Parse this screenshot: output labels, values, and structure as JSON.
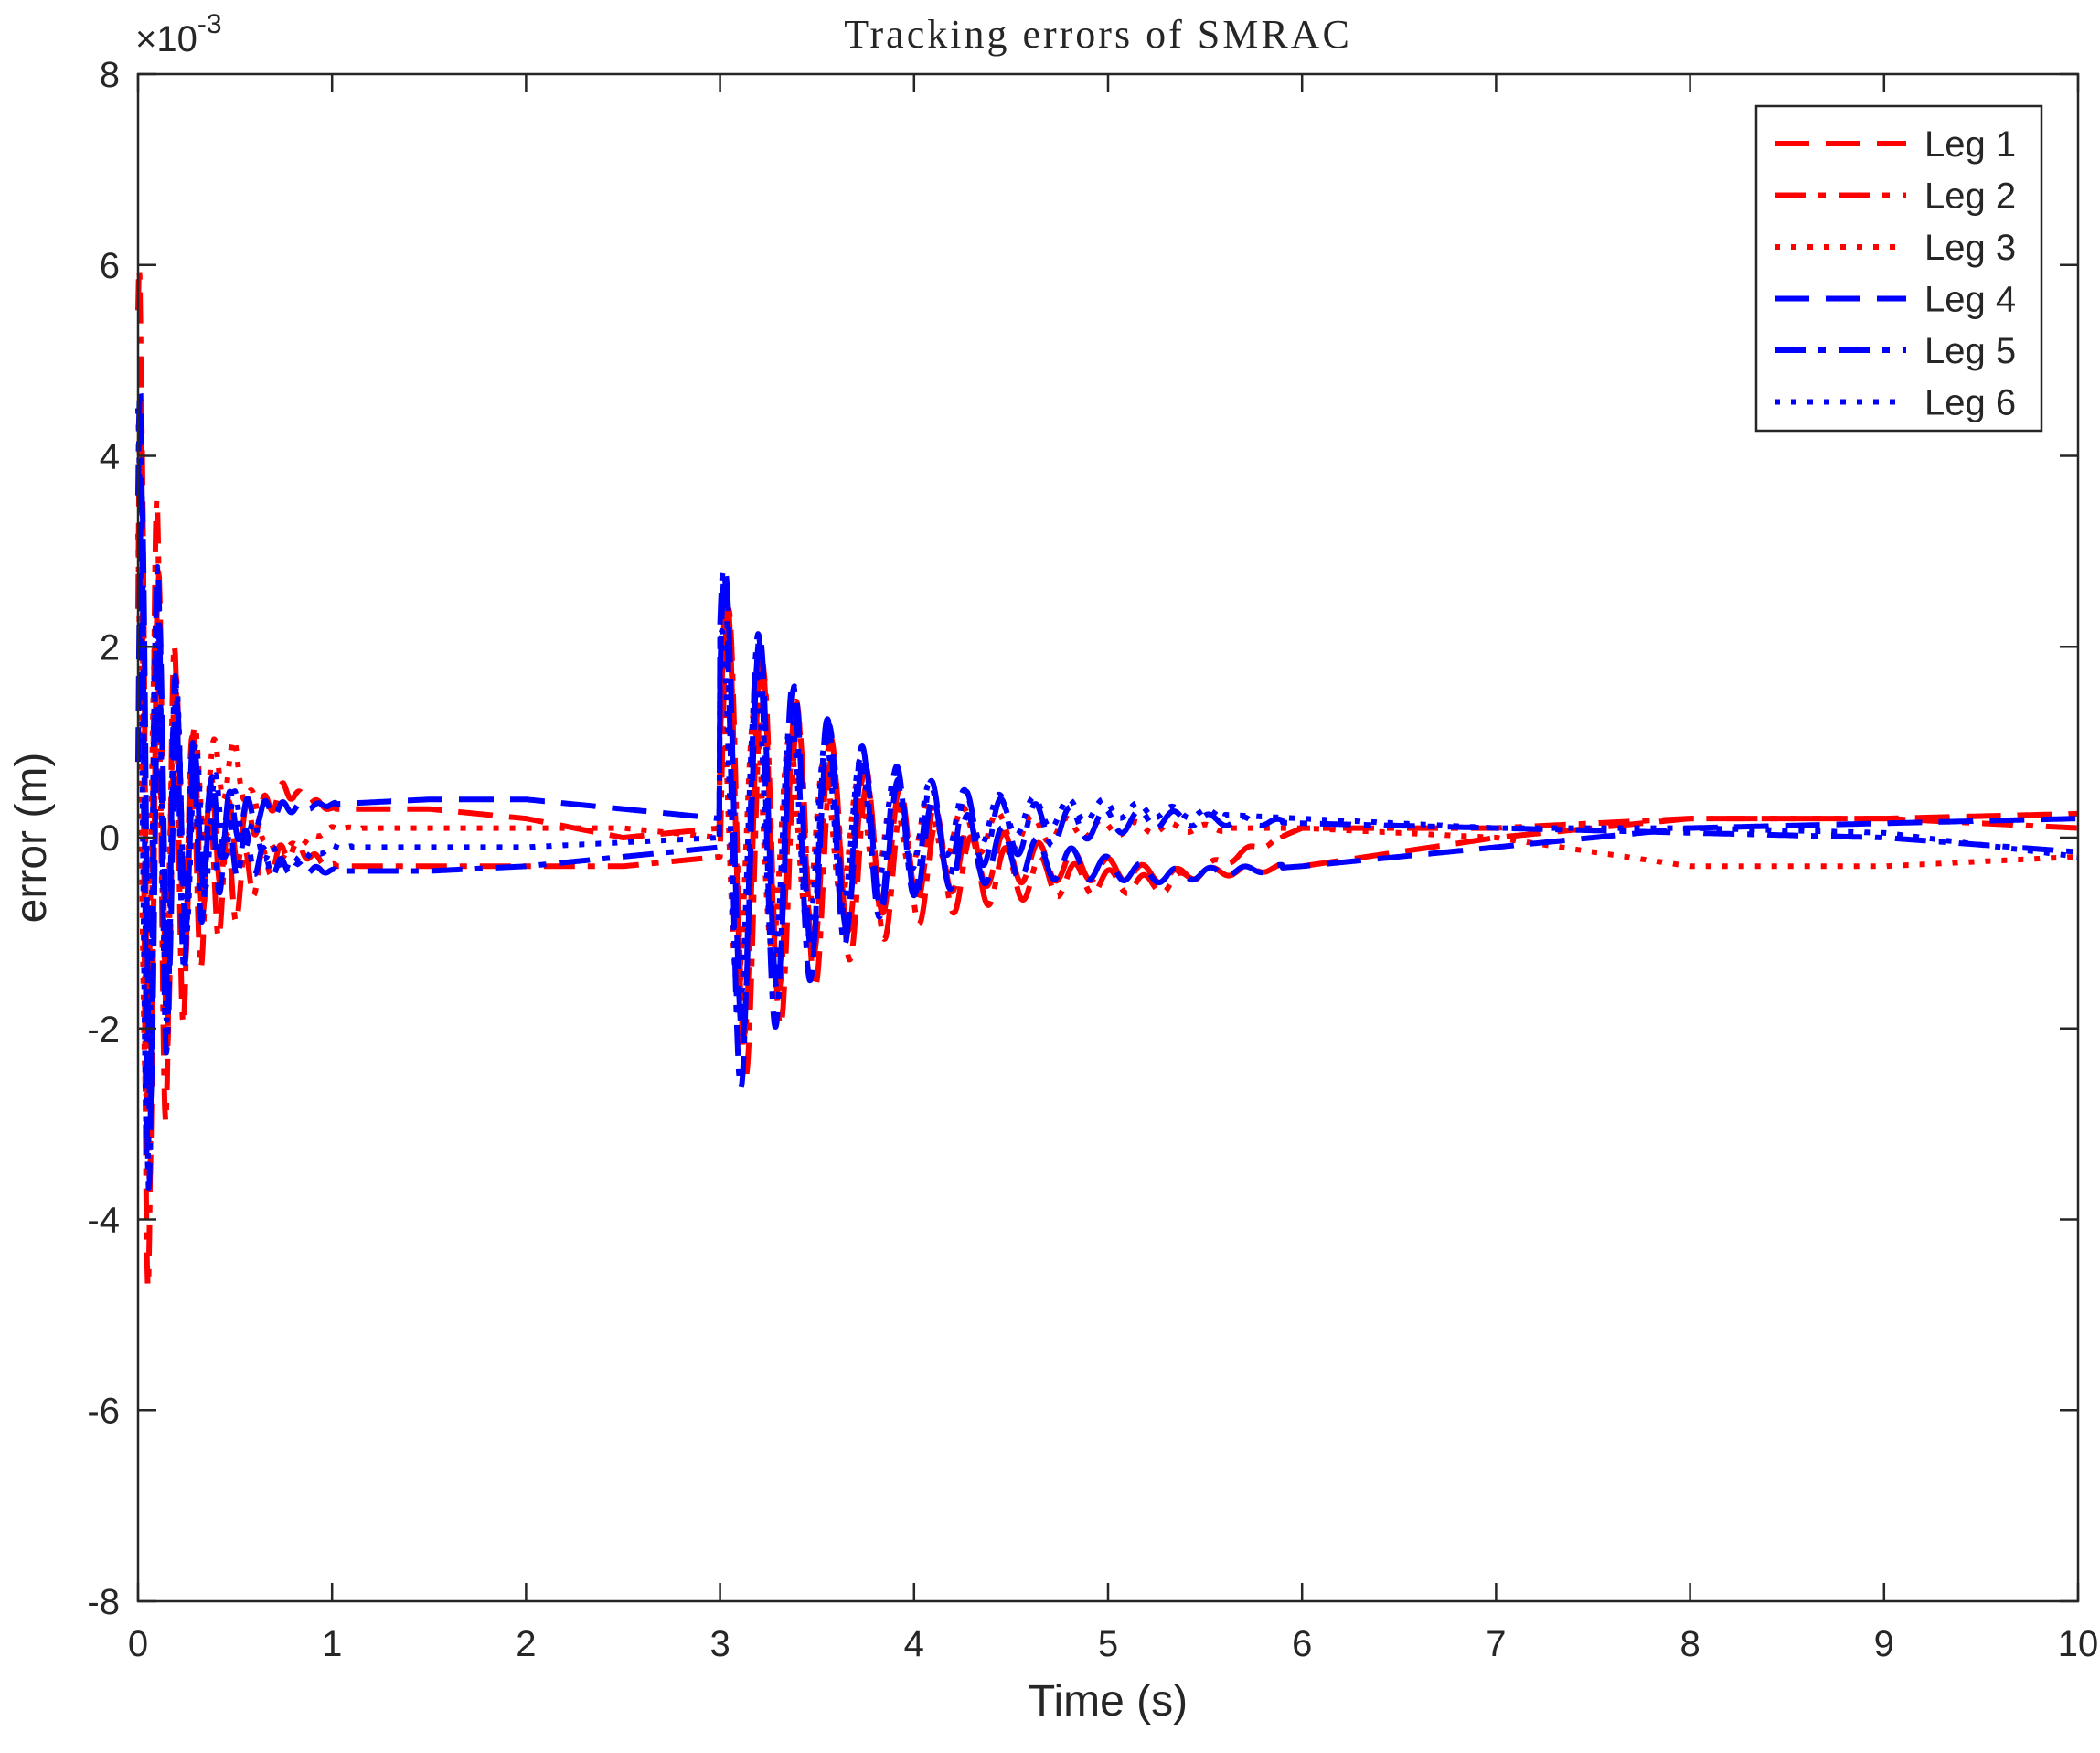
{
  "chart_data": {
    "type": "line",
    "title": "Tracking errors of SMRAC",
    "xlabel": "Time (s)",
    "ylabel": "error (m)",
    "y_exponent_label": "×10",
    "y_exponent_power": "-3",
    "xlim": [
      0,
      10
    ],
    "ylim": [
      -8,
      8
    ],
    "x_ticks": [
      0,
      1,
      2,
      3,
      4,
      5,
      6,
      7,
      8,
      9,
      10
    ],
    "y_ticks": [
      -8,
      -6,
      -4,
      -2,
      0,
      2,
      4,
      6,
      8
    ],
    "x_tick_labels": [
      "0",
      "1",
      "2",
      "3",
      "4",
      "5",
      "6",
      "7",
      "8",
      "9",
      "10"
    ],
    "y_tick_labels": [
      "-8",
      "-6",
      "-4",
      "-2",
      "0",
      "2",
      "4",
      "6",
      "8"
    ],
    "grid": false,
    "legend_position": "top-right",
    "colors": {
      "red": "#ff0000",
      "blue": "#0000ff",
      "axis": "#262626"
    },
    "series": [
      {
        "name": "Leg 1",
        "color": "#ff0000",
        "dash": "dashed",
        "envelope": [
          {
            "amp": 5.0,
            "t0": 0.0,
            "t1": 0.42,
            "freq": 11,
            "phase": 0.5
          },
          {
            "amp": 2.6,
            "t0": 3.0,
            "t1": 5.3,
            "freq": 5.6,
            "phase": 0.3
          }
        ],
        "baseline": [
          [
            0,
            0
          ],
          [
            0.5,
            0
          ],
          [
            0.75,
            0.5
          ],
          [
            1,
            0.3
          ],
          [
            1.5,
            0.3
          ],
          [
            2,
            0.2
          ],
          [
            2.5,
            0.0
          ],
          [
            3.0,
            0.1
          ],
          [
            3.0,
            0.1
          ],
          [
            5.3,
            -0.4
          ],
          [
            6,
            -0.3
          ],
          [
            7,
            0.0
          ],
          [
            8,
            0.2
          ],
          [
            9,
            0.2
          ],
          [
            10,
            0.25
          ]
        ]
      },
      {
        "name": "Leg 2",
        "color": "#ff0000",
        "dash": "dashdot",
        "envelope": [
          {
            "amp": 6.2,
            "t0": 0.0,
            "t1": 0.42,
            "freq": 11,
            "phase": 1.1
          },
          {
            "amp": 2.8,
            "t0": 3.0,
            "t1": 5.3,
            "freq": 5.6,
            "phase": 0.0
          }
        ],
        "baseline": [
          [
            0,
            0
          ],
          [
            0.5,
            -0.5
          ],
          [
            0.8,
            -0.1
          ],
          [
            1,
            -0.3
          ],
          [
            1.5,
            -0.3
          ],
          [
            2,
            -0.3
          ],
          [
            2.5,
            -0.3
          ],
          [
            3.0,
            -0.2
          ],
          [
            3.0,
            -0.2
          ],
          [
            5.3,
            -0.5
          ],
          [
            6,
            0.1
          ],
          [
            7,
            0.1
          ],
          [
            8,
            0.2
          ],
          [
            9,
            0.2
          ],
          [
            10,
            0.1
          ]
        ]
      },
      {
        "name": "Leg 3",
        "color": "#ff0000",
        "dash": "dotted",
        "envelope": [
          {
            "amp": 3.5,
            "t0": 0.0,
            "t1": 0.55,
            "freq": 10,
            "phase": 2.0
          },
          {
            "amp": 1.8,
            "t0": 3.0,
            "t1": 5.0,
            "freq": 5.6,
            "phase": 1.5
          }
        ],
        "baseline": [
          [
            0,
            0
          ],
          [
            0.5,
            0.8
          ],
          [
            0.7,
            -0.2
          ],
          [
            1,
            0.1
          ],
          [
            1.5,
            0.1
          ],
          [
            2,
            0.1
          ],
          [
            2.5,
            0.1
          ],
          [
            3.0,
            0.0
          ],
          [
            3.0,
            0.0
          ],
          [
            5,
            0.1
          ],
          [
            6,
            0.1
          ],
          [
            7,
            0.0
          ],
          [
            8,
            -0.3
          ],
          [
            9,
            -0.3
          ],
          [
            10,
            -0.2
          ]
        ]
      },
      {
        "name": "Leg 4",
        "color": "#0000ff",
        "dash": "dashed",
        "envelope": [
          {
            "amp": 4.0,
            "t0": 0.0,
            "t1": 0.42,
            "freq": 11,
            "phase": 0.2
          },
          {
            "amp": 2.7,
            "t0": 3.0,
            "t1": 5.3,
            "freq": 5.6,
            "phase": 0.6
          }
        ],
        "baseline": [
          [
            0,
            0
          ],
          [
            0.5,
            0.2
          ],
          [
            0.7,
            0.3
          ],
          [
            1,
            0.35
          ],
          [
            1.5,
            0.4
          ],
          [
            2,
            0.4
          ],
          [
            2.5,
            0.3
          ],
          [
            3.0,
            0.2
          ],
          [
            3.0,
            0.2
          ],
          [
            5.3,
            -0.4
          ],
          [
            6,
            -0.3
          ],
          [
            7,
            -0.1
          ],
          [
            8,
            0.1
          ],
          [
            9,
            0.15
          ],
          [
            10,
            0.2
          ]
        ]
      },
      {
        "name": "Leg 5",
        "color": "#0000ff",
        "dash": "dashdot",
        "envelope": [
          {
            "amp": 5.0,
            "t0": 0.0,
            "t1": 0.42,
            "freq": 11,
            "phase": 0.8
          },
          {
            "amp": 3.0,
            "t0": 3.0,
            "t1": 5.3,
            "freq": 5.6,
            "phase": 0.9
          }
        ],
        "baseline": [
          [
            0,
            0
          ],
          [
            0.5,
            -0.1
          ],
          [
            0.7,
            -0.3
          ],
          [
            1,
            -0.35
          ],
          [
            1.5,
            -0.35
          ],
          [
            2,
            -0.3
          ],
          [
            2.5,
            -0.2
          ],
          [
            3.0,
            -0.1
          ],
          [
            3.0,
            -0.1
          ],
          [
            5.3,
            0.2
          ],
          [
            6,
            0.15
          ],
          [
            7,
            0.1
          ],
          [
            8,
            0.05
          ],
          [
            9,
            0.0
          ],
          [
            10,
            -0.15
          ]
        ]
      },
      {
        "name": "Leg 6",
        "color": "#0000ff",
        "dash": "dotted",
        "envelope": [
          {
            "amp": 4.5,
            "t0": 0.0,
            "t1": 0.5,
            "freq": 10,
            "phase": 1.6
          },
          {
            "amp": 2.2,
            "t0": 3.0,
            "t1": 5.0,
            "freq": 5.6,
            "phase": 1.2
          }
        ],
        "baseline": [
          [
            0,
            0
          ],
          [
            0.5,
            0.2
          ],
          [
            0.75,
            -0.3
          ],
          [
            1,
            -0.1
          ],
          [
            1.5,
            -0.1
          ],
          [
            2,
            -0.1
          ],
          [
            2.5,
            -0.05
          ],
          [
            3.0,
            0.0
          ],
          [
            3.0,
            0.0
          ],
          [
            5,
            0.3
          ],
          [
            6,
            0.2
          ],
          [
            7,
            0.1
          ],
          [
            8,
            0.1
          ],
          [
            9,
            0.05
          ],
          [
            10,
            -0.2
          ]
        ]
      }
    ]
  }
}
